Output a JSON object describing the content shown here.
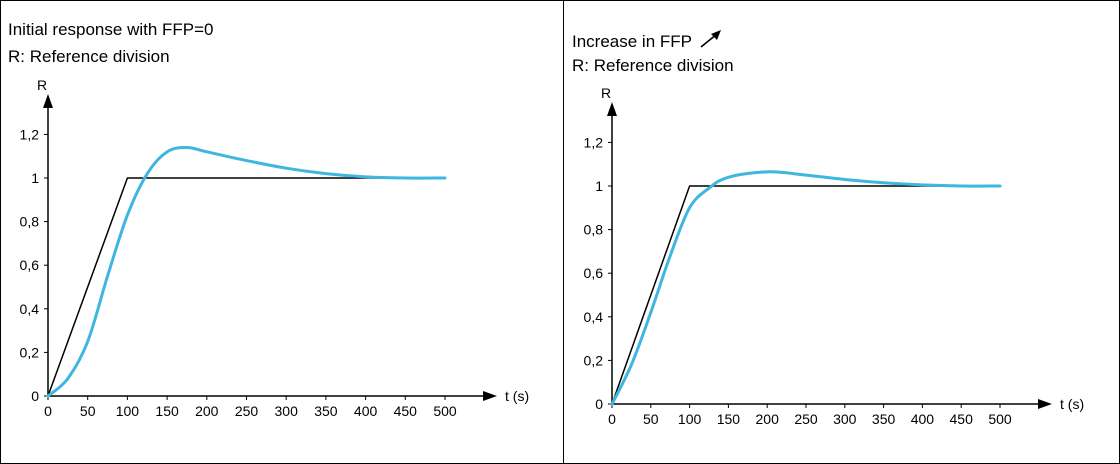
{
  "panels": [
    {
      "caption_line1": "Initial response with FFP=0",
      "caption_line2": "R: Reference division"
    },
    {
      "caption_line1": "Increase in FFP",
      "caption_line2": "R: Reference division",
      "caption_icon": "arrow-up-right-icon"
    }
  ],
  "colors": {
    "reference": "#000000",
    "response": "#3fb6e0"
  },
  "chart_data": [
    {
      "type": "line",
      "xlabel": "t (s)",
      "ylabel": "R",
      "xlim": [
        0,
        500
      ],
      "ylim": [
        0,
        1.2
      ],
      "x_ticks": [
        "0",
        "50",
        "100",
        "150",
        "200",
        "250",
        "300",
        "350",
        "400",
        "450",
        "500"
      ],
      "y_ticks": [
        "0",
        "0,2",
        "0,4",
        "0,6",
        "0,8",
        "1",
        "1,2"
      ],
      "grid": false,
      "series": [
        {
          "points": [
            [
              0,
              0
            ],
            [
              100,
              1
            ],
            [
              500,
              1
            ]
          ]
        },
        {
          "points": [
            [
              0,
              0
            ],
            [
              25,
              0.08
            ],
            [
              50,
              0.25
            ],
            [
              75,
              0.55
            ],
            [
              100,
              0.83
            ],
            [
              125,
              1.02
            ],
            [
              150,
              1.12
            ],
            [
              175,
              1.14
            ],
            [
              200,
              1.12
            ],
            [
              250,
              1.08
            ],
            [
              300,
              1.045
            ],
            [
              350,
              1.02
            ],
            [
              400,
              1.005
            ],
            [
              450,
              1.0
            ],
            [
              500,
              1.0
            ]
          ]
        }
      ]
    },
    {
      "type": "line",
      "xlabel": "t (s)",
      "ylabel": "R",
      "xlim": [
        0,
        500
      ],
      "ylim": [
        0,
        1.2
      ],
      "x_ticks": [
        "0",
        "50",
        "100",
        "150",
        "200",
        "250",
        "300",
        "350",
        "400",
        "450",
        "500"
      ],
      "y_ticks": [
        "0",
        "0,2",
        "0,4",
        "0,6",
        "0,8",
        "1",
        "1,2"
      ],
      "grid": false,
      "series": [
        {
          "points": [
            [
              0,
              0
            ],
            [
              100,
              1
            ],
            [
              500,
              1
            ]
          ]
        },
        {
          "points": [
            [
              0,
              0
            ],
            [
              25,
              0.18
            ],
            [
              50,
              0.42
            ],
            [
              75,
              0.68
            ],
            [
              100,
              0.9
            ],
            [
              125,
              0.99
            ],
            [
              150,
              1.04
            ],
            [
              200,
              1.065
            ],
            [
              250,
              1.05
            ],
            [
              300,
              1.03
            ],
            [
              350,
              1.015
            ],
            [
              400,
              1.005
            ],
            [
              450,
              1.0
            ],
            [
              500,
              1.0
            ]
          ]
        }
      ]
    }
  ]
}
